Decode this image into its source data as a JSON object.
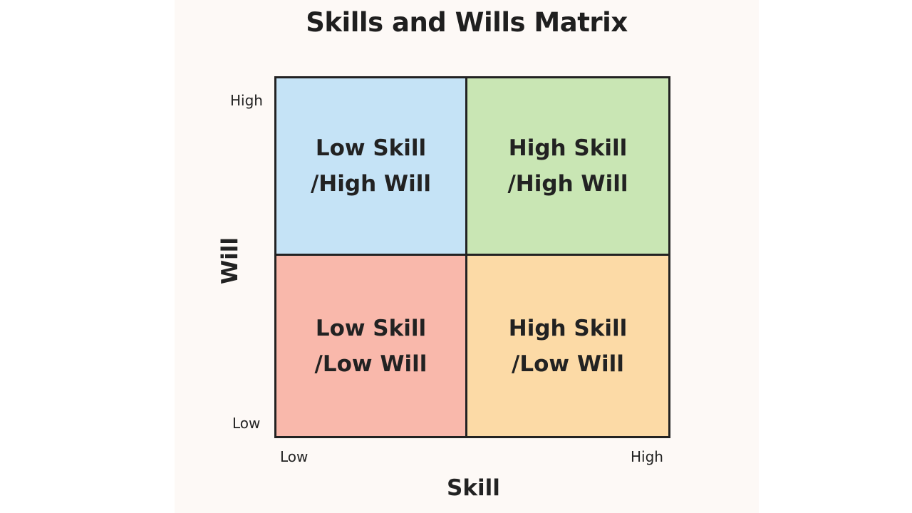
{
  "title": "Skills and Wills Matrix",
  "x_axis": {
    "label": "Skill",
    "low": "Low",
    "high": "High"
  },
  "y_axis": {
    "label": "Will",
    "low": "Low",
    "high": "High"
  },
  "quadrants": {
    "top_left": {
      "line1": "Low Skill",
      "line2": "/High Will",
      "color": "#c5e3f6"
    },
    "top_right": {
      "line1": "High Skill",
      "line2": "/High Will",
      "color": "#c9e6b4"
    },
    "bottom_left": {
      "line1": "Low Skill",
      "line2": "/Low Will",
      "color": "#f9b8ab"
    },
    "bottom_right": {
      "line1": "High Skill",
      "line2": "/Low Will",
      "color": "#fcdaa6"
    }
  }
}
